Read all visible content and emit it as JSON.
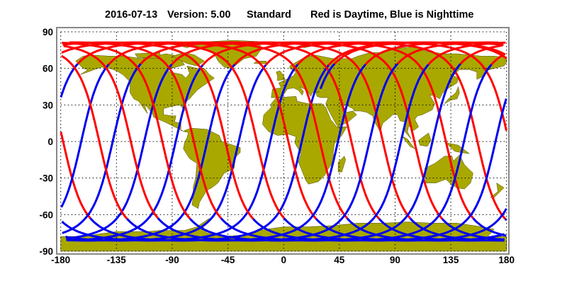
{
  "title": {
    "date": "2016-07-13",
    "version": "Version: 5.00",
    "mode": "Standard",
    "legend": "Red is Daytime, Blue is Nighttime"
  },
  "map": {
    "projection": "equirectangular",
    "lon_range": [
      -180,
      180
    ],
    "lat_range": [
      -90,
      90
    ],
    "lon_ticks": [
      "-180",
      "-135",
      "-90",
      "-45",
      "0",
      "45",
      "90",
      "135",
      "180"
    ],
    "lat_ticks": [
      "90",
      "60",
      "30",
      "0",
      "-30",
      "-60",
      "-90"
    ],
    "grid": true,
    "colors": {
      "land": "#a9a800",
      "day_track": "#ff0000",
      "night_track": "#0000ee",
      "frame": "#888888"
    }
  }
}
